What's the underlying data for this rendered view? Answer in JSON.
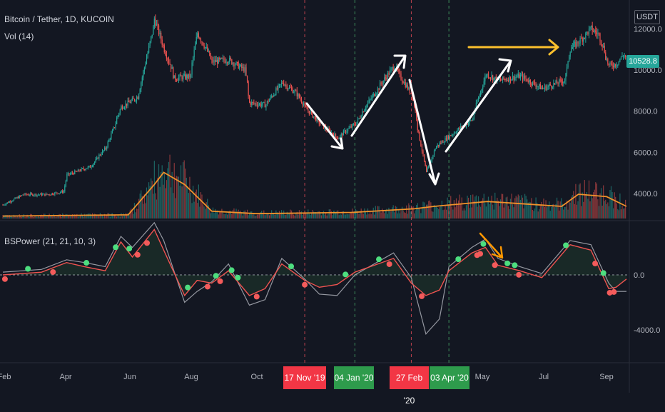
{
  "header": {
    "symbol": "Bitcoin / Tether, 1D, KUCOIN",
    "volume": "Vol (14)",
    "indicator": "BSPower (21, 21, 10, 3)"
  },
  "currency": "USDT",
  "last_price": "10528.8",
  "date_tags": [
    {
      "label": "17 Nov '19",
      "color": "red"
    },
    {
      "label": "04 Jan '20",
      "color": "green"
    },
    {
      "label": "27 Feb '20",
      "color": "red"
    },
    {
      "label": "03 Apr '20",
      "color": "green"
    }
  ],
  "colors": {
    "background": "#131722",
    "up": "#26a69a",
    "down": "#ef5350",
    "volume_ma": "#f0922b",
    "bsp_line": "#ef5350",
    "bsp_signal": "#9598a1",
    "dot_buy": "#4dde7f",
    "dot_sell": "#f45b5b",
    "annotation_white": "#ffffff",
    "annotation_yellow": "#fbc02d",
    "annotation_orange": "#ff9800"
  },
  "chart_data": [
    {
      "type": "candlestick",
      "title": "Bitcoin / Tether, 1D, KUCOIN",
      "x_ticks": [
        "Feb",
        "Apr",
        "Jun",
        "Aug",
        "Oct",
        "May",
        "Jul",
        "Sep"
      ],
      "y_ticks": [
        4000.0,
        6000.0,
        8000.0,
        10000.0,
        12000.0
      ],
      "y_tick_labels": [
        "4000.0",
        "6000.0",
        "8000.0",
        "10000.0",
        "12000.0"
      ],
      "close_path": [
        [
          "2019-02-01",
          3450
        ],
        [
          "2019-02-20",
          3950
        ],
        [
          "2019-03-15",
          3950
        ],
        [
          "2019-03-31",
          4100
        ],
        [
          "2019-04-03",
          4900
        ],
        [
          "2019-04-25",
          5300
        ],
        [
          "2019-05-10",
          6200
        ],
        [
          "2019-05-25",
          8200
        ],
        [
          "2019-06-10",
          8700
        ],
        [
          "2019-06-26",
          12500
        ],
        [
          "2019-07-05",
          11000
        ],
        [
          "2019-07-15",
          9600
        ],
        [
          "2019-07-30",
          9700
        ],
        [
          "2019-08-06",
          11800
        ],
        [
          "2019-08-20",
          10400
        ],
        [
          "2019-09-05",
          10500
        ],
        [
          "2019-09-20",
          10000
        ],
        [
          "2019-09-25",
          8400
        ],
        [
          "2019-10-10",
          8300
        ],
        [
          "2019-10-26",
          9400
        ],
        [
          "2019-11-08",
          8900
        ],
        [
          "2019-11-17",
          8200
        ],
        [
          "2019-12-01",
          7400
        ],
        [
          "2019-12-18",
          6700
        ],
        [
          "2020-01-04",
          7400
        ],
        [
          "2020-01-20",
          8700
        ],
        [
          "2020-02-10",
          10200
        ],
        [
          "2020-02-27",
          8800
        ],
        [
          "2020-03-12",
          5000
        ],
        [
          "2020-03-20",
          6200
        ],
        [
          "2020-04-03",
          6800
        ],
        [
          "2020-04-25",
          7600
        ],
        [
          "2020-05-08",
          9800
        ],
        [
          "2020-05-20",
          9500
        ],
        [
          "2020-06-10",
          9700
        ],
        [
          "2020-07-01",
          9100
        ],
        [
          "2020-07-22",
          9500
        ],
        [
          "2020-07-28",
          11000
        ],
        [
          "2020-08-05",
          11400
        ],
        [
          "2020-08-17",
          12000
        ],
        [
          "2020-08-24",
          11700
        ],
        [
          "2020-09-03",
          10200
        ],
        [
          "2020-09-10",
          10300
        ],
        [
          "2020-09-17",
          10800
        ],
        [
          "2020-09-20",
          10528.8
        ]
      ],
      "annotations": [
        "white zigzag arrows",
        "yellow horizontal arrow"
      ]
    },
    {
      "type": "bar",
      "title": "Vol (14)",
      "ma_path": [
        [
          "2019-02-01",
          2
        ],
        [
          "2019-06-01",
          3
        ],
        [
          "2019-06-26",
          28
        ],
        [
          "2019-07-05",
          38
        ],
        [
          "2019-07-25",
          28
        ],
        [
          "2019-08-20",
          6
        ],
        [
          "2019-10-01",
          4
        ],
        [
          "2020-01-01",
          5
        ],
        [
          "2020-03-01",
          8
        ],
        [
          "2020-03-20",
          10
        ],
        [
          "2020-05-10",
          14
        ],
        [
          "2020-07-20",
          10
        ],
        [
          "2020-08-05",
          20
        ],
        [
          "2020-09-01",
          18
        ],
        [
          "2020-09-20",
          10
        ]
      ]
    },
    {
      "type": "line",
      "title": "BSPower (21, 21, 10, 3)",
      "y_ticks": [
        0.0,
        -4000.0
      ],
      "y_tick_labels": [
        "0.0",
        "-4000.0"
      ],
      "series": [
        {
          "values": [
            [
              "2019-02-01",
              0
            ],
            [
              "2019-03-10",
              200
            ],
            [
              "2019-04-03",
              900
            ],
            [
              "2019-04-20",
              600
            ],
            [
              "2019-05-10",
              300
            ],
            [
              "2019-05-25",
              2400
            ],
            [
              "2019-06-05",
              1300
            ],
            [
              "2019-06-26",
              3300
            ],
            [
              "2019-07-05",
              1800
            ],
            [
              "2019-07-25",
              -1500
            ],
            [
              "2019-08-06",
              -400
            ],
            [
              "2019-08-20",
              -600
            ],
            [
              "2019-09-05",
              300
            ],
            [
              "2019-09-25",
              -1500
            ],
            [
              "2019-10-10",
              -1000
            ],
            [
              "2019-10-26",
              800
            ],
            [
              "2019-11-17",
              -400
            ],
            [
              "2019-12-01",
              -900
            ],
            [
              "2019-12-18",
              -700
            ],
            [
              "2020-01-04",
              200
            ],
            [
              "2020-02-10",
              1200
            ],
            [
              "2020-02-27",
              -600
            ],
            [
              "2020-03-12",
              -1500
            ],
            [
              "2020-03-25",
              -1100
            ],
            [
              "2020-04-03",
              300
            ],
            [
              "2020-04-25",
              1600
            ],
            [
              "2020-05-08",
              2000
            ],
            [
              "2020-05-20",
              700
            ],
            [
              "2020-06-10",
              300
            ],
            [
              "2020-07-01",
              -200
            ],
            [
              "2020-07-28",
              2200
            ],
            [
              "2020-08-17",
              1800
            ],
            [
              "2020-09-03",
              -1000
            ],
            [
              "2020-09-10",
              -900
            ],
            [
              "2020-09-20",
              -300
            ]
          ]
        },
        {
          "values": [
            [
              "2019-02-01",
              200
            ],
            [
              "2019-03-10",
              400
            ],
            [
              "2019-04-03",
              1100
            ],
            [
              "2019-04-20",
              900
            ],
            [
              "2019-05-10",
              600
            ],
            [
              "2019-05-25",
              2800
            ],
            [
              "2019-06-05",
              2000
            ],
            [
              "2019-06-26",
              3800
            ],
            [
              "2019-07-05",
              2500
            ],
            [
              "2019-07-25",
              -2000
            ],
            [
              "2019-08-06",
              -1200
            ],
            [
              "2019-08-20",
              -500
            ],
            [
              "2019-09-05",
              800
            ],
            [
              "2019-09-25",
              -2200
            ],
            [
              "2019-10-10",
              -1800
            ],
            [
              "2019-10-26",
              1200
            ],
            [
              "2019-11-17",
              -300
            ],
            [
              "2019-12-01",
              -1400
            ],
            [
              "2019-12-18",
              -1500
            ],
            [
              "2020-01-04",
              0
            ],
            [
              "2020-02-10",
              1600
            ],
            [
              "2020-02-27",
              -200
            ],
            [
              "2020-03-12",
              -4300
            ],
            [
              "2020-03-25",
              -3200
            ],
            [
              "2020-04-03",
              600
            ],
            [
              "2020-04-25",
              2000
            ],
            [
              "2020-05-08",
              2600
            ],
            [
              "2020-05-20",
              1200
            ],
            [
              "2020-06-10",
              600
            ],
            [
              "2020-07-01",
              100
            ],
            [
              "2020-07-28",
              2500
            ],
            [
              "2020-08-17",
              2200
            ],
            [
              "2020-09-03",
              -600
            ],
            [
              "2020-09-10",
              -1200
            ],
            [
              "2020-09-20",
              -1200
            ]
          ]
        }
      ],
      "signals": {
        "buy": [
          "2019-02-25",
          "2019-04-22",
          "2019-05-20",
          "2019-06-02",
          "2019-07-28",
          "2019-08-24",
          "2019-09-08",
          "2019-09-14",
          "2019-11-04",
          "2019-12-26",
          "2020-01-27",
          "2020-04-12",
          "2020-05-06",
          "2020-05-29",
          "2020-06-05",
          "2020-07-24",
          "2020-08-29"
        ],
        "sell": [
          "2019-02-03",
          "2019-03-21",
          "2019-06-10",
          "2019-06-19",
          "2019-08-16",
          "2019-08-28",
          "2019-10-02",
          "2019-11-17",
          "2020-02-06",
          "2020-03-08",
          "2020-04-30",
          "2020-05-03",
          "2020-05-17",
          "2020-06-09",
          "2020-08-21",
          "2020-09-04",
          "2020-09-08"
        ]
      }
    }
  ]
}
